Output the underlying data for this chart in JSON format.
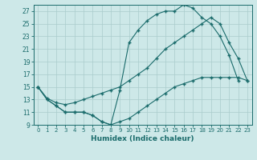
{
  "xlabel": "Humidex (Indice chaleur)",
  "bg_color": "#cde8e8",
  "grid_color": "#b0d0d0",
  "line_color": "#1a6b6b",
  "xlim": [
    -0.5,
    23.5
  ],
  "ylim": [
    9,
    28
  ],
  "xticks": [
    0,
    1,
    2,
    3,
    4,
    5,
    6,
    7,
    8,
    9,
    10,
    11,
    12,
    13,
    14,
    15,
    16,
    17,
    18,
    19,
    20,
    21,
    22,
    23
  ],
  "yticks": [
    9,
    11,
    13,
    15,
    17,
    19,
    21,
    23,
    25,
    27
  ],
  "curve1_x": [
    0,
    1,
    2,
    3,
    4,
    5,
    6,
    7,
    8,
    9,
    10,
    11,
    12,
    13,
    14,
    15,
    16,
    17,
    18,
    19,
    20,
    21,
    22
  ],
  "curve1_y": [
    15,
    13,
    12,
    11,
    11,
    11,
    10.5,
    9.5,
    9,
    14.5,
    22,
    24,
    25.5,
    26.5,
    27,
    27,
    28,
    27.5,
    26,
    25,
    23,
    20,
    16
  ],
  "curve2_x": [
    0,
    1,
    2,
    3,
    4,
    5,
    6,
    7,
    8,
    9,
    10,
    11,
    12,
    13,
    14,
    15,
    16,
    17,
    18,
    19,
    20,
    21,
    22,
    23
  ],
  "curve2_y": [
    15,
    13.2,
    12.5,
    12.2,
    12.5,
    13,
    13.5,
    14,
    14.5,
    15,
    16,
    17,
    18,
    19.5,
    21,
    22,
    23,
    24,
    25,
    26,
    25,
    22,
    19.5,
    16
  ],
  "curve3_x": [
    0,
    1,
    2,
    3,
    4,
    5,
    6,
    7,
    8,
    9,
    10,
    11,
    12,
    13,
    14,
    15,
    16,
    17,
    18,
    19,
    20,
    21,
    22,
    23
  ],
  "curve3_y": [
    15,
    13,
    12,
    11,
    11,
    11,
    10.5,
    9.5,
    9,
    9.5,
    10,
    11,
    12,
    13,
    14,
    15,
    15.5,
    16,
    16.5,
    16.5,
    16.5,
    16.5,
    16.5,
    16
  ]
}
